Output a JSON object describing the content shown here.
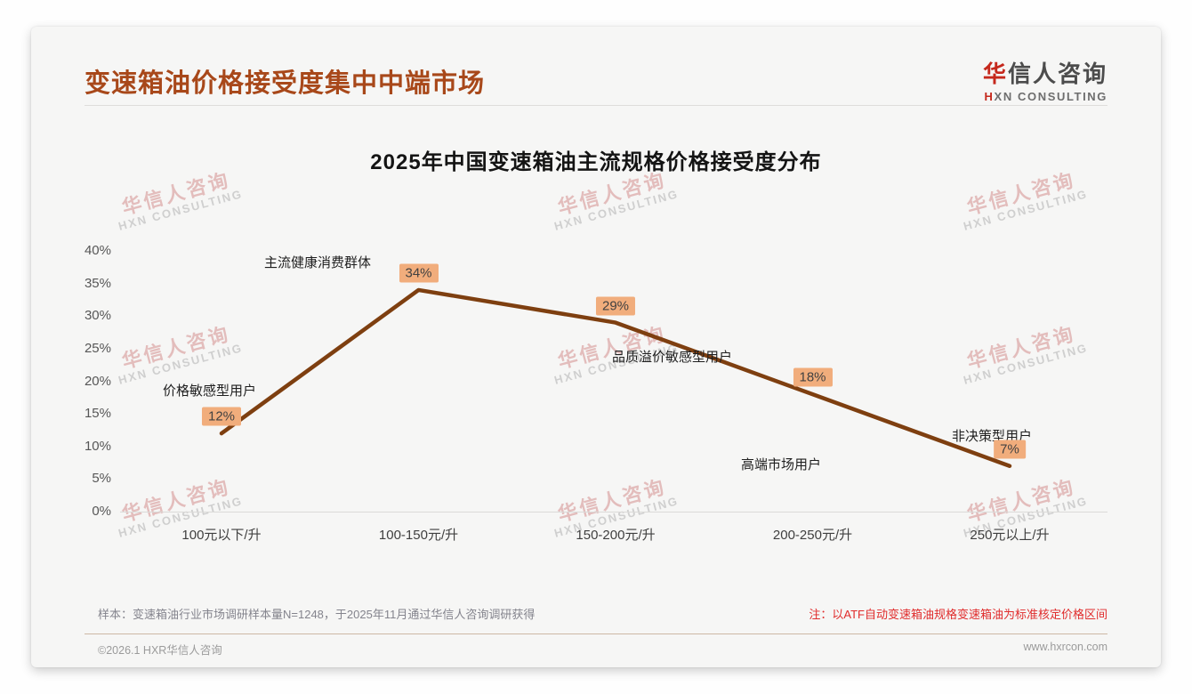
{
  "header": {
    "title": "变速箱油价格接受度集中中端市场",
    "logo": {
      "cn_first": "华",
      "cn_rest": "信人咨询",
      "en_first": "H",
      "en_rest": "XN CONSULTING"
    }
  },
  "watermark": {
    "line1": "华信人咨询",
    "line2": "HXN CONSULTING"
  },
  "chart_data": {
    "type": "line",
    "title": "2025年中国变速箱油主流规格价格接受度分布",
    "categories": [
      "100元以下/升",
      "100-150元/升",
      "150-200元/升",
      "200-250元/升",
      "250元以上/升"
    ],
    "values": [
      12,
      34,
      29,
      18,
      7
    ],
    "data_labels": [
      "12%",
      "34%",
      "29%",
      "18%",
      "7%"
    ],
    "annotations": [
      "价格敏感型用户",
      "主流健康消费群体",
      "品质溢价敏感型用户",
      "高端市场用户",
      "非决策型用户"
    ],
    "yticks": [
      "0%",
      "5%",
      "10%",
      "15%",
      "20%",
      "25%",
      "30%",
      "35%",
      "40%"
    ],
    "ylim": [
      0,
      40
    ],
    "xlabel": "",
    "ylabel": "",
    "grid": false,
    "legend": false,
    "line_color": "#7e3f10",
    "data_label_bg": "#f1ad7c"
  },
  "footnotes": {
    "sample_note": "样本：变速箱油行业市场调研样本量N=1248，于2025年11月通过华信人咨询调研获得",
    "price_note": "注：以ATF自动变速箱油规格变速箱油为标准核定价格区间"
  },
  "footer": {
    "copyright": "©2026.1 HXR华信人咨询",
    "website": "www.hxrcon.com"
  },
  "colors": {
    "page_title": "#a8481a",
    "line": "#7e3f10",
    "badge_bg": "#f1ad7c",
    "note_red": "#e02b2b",
    "logo_red": "#c5281c"
  }
}
